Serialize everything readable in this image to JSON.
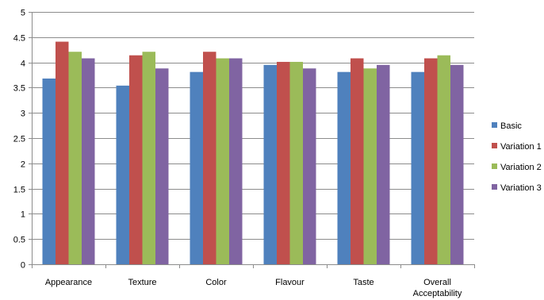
{
  "chart_data": {
    "type": "bar",
    "title": "",
    "xlabel": "",
    "ylabel": "",
    "ylim": [
      0,
      5
    ],
    "yticks": [
      "0",
      "0.5",
      "1",
      "1.5",
      "2",
      "2.5",
      "3",
      "3.5",
      "4",
      "4.5",
      "5"
    ],
    "grid": true,
    "legend_position": "right",
    "categories": [
      [
        "Appearance"
      ],
      [
        "Texture"
      ],
      [
        "Color"
      ],
      [
        "Flavour"
      ],
      [
        "Taste"
      ],
      [
        "Overall",
        "Acceptability"
      ]
    ],
    "series": [
      {
        "name": "Basic",
        "color": "#4f81bd",
        "values": [
          3.68,
          3.54,
          3.81,
          3.95,
          3.81,
          3.81
        ]
      },
      {
        "name": "Variation 1",
        "color": "#c0504d",
        "values": [
          4.41,
          4.14,
          4.21,
          4.01,
          4.08,
          4.08
        ]
      },
      {
        "name": "Variation 2",
        "color": "#9bbb59",
        "values": [
          4.21,
          4.21,
          4.08,
          4.01,
          3.88,
          4.14
        ]
      },
      {
        "name": "Variation 3",
        "color": "#8064a2",
        "values": [
          4.08,
          3.88,
          4.08,
          3.88,
          3.95,
          3.95
        ]
      }
    ]
  }
}
